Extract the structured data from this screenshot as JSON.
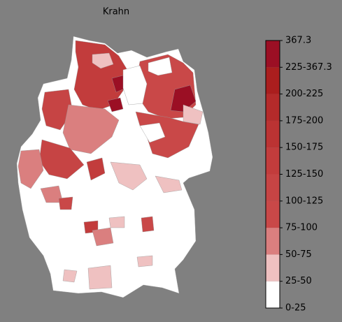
{
  "map_data": {
    "title": "Krahn",
    "legend": {
      "labels": [
        "0-25",
        "25-50",
        "50-75",
        "75-100",
        "100-125",
        "125-150",
        "150-175",
        "175-200",
        "200-225",
        "225-367.3",
        "367.3"
      ],
      "colors": [
        "#ffffff",
        "#efc1c1",
        "#da7f7f",
        "#c94848",
        "#c64444",
        "#c23c3c",
        "#bb3333",
        "#b42a2a",
        "#aa1e1e",
        "#9b0f24"
      ]
    }
  }
}
